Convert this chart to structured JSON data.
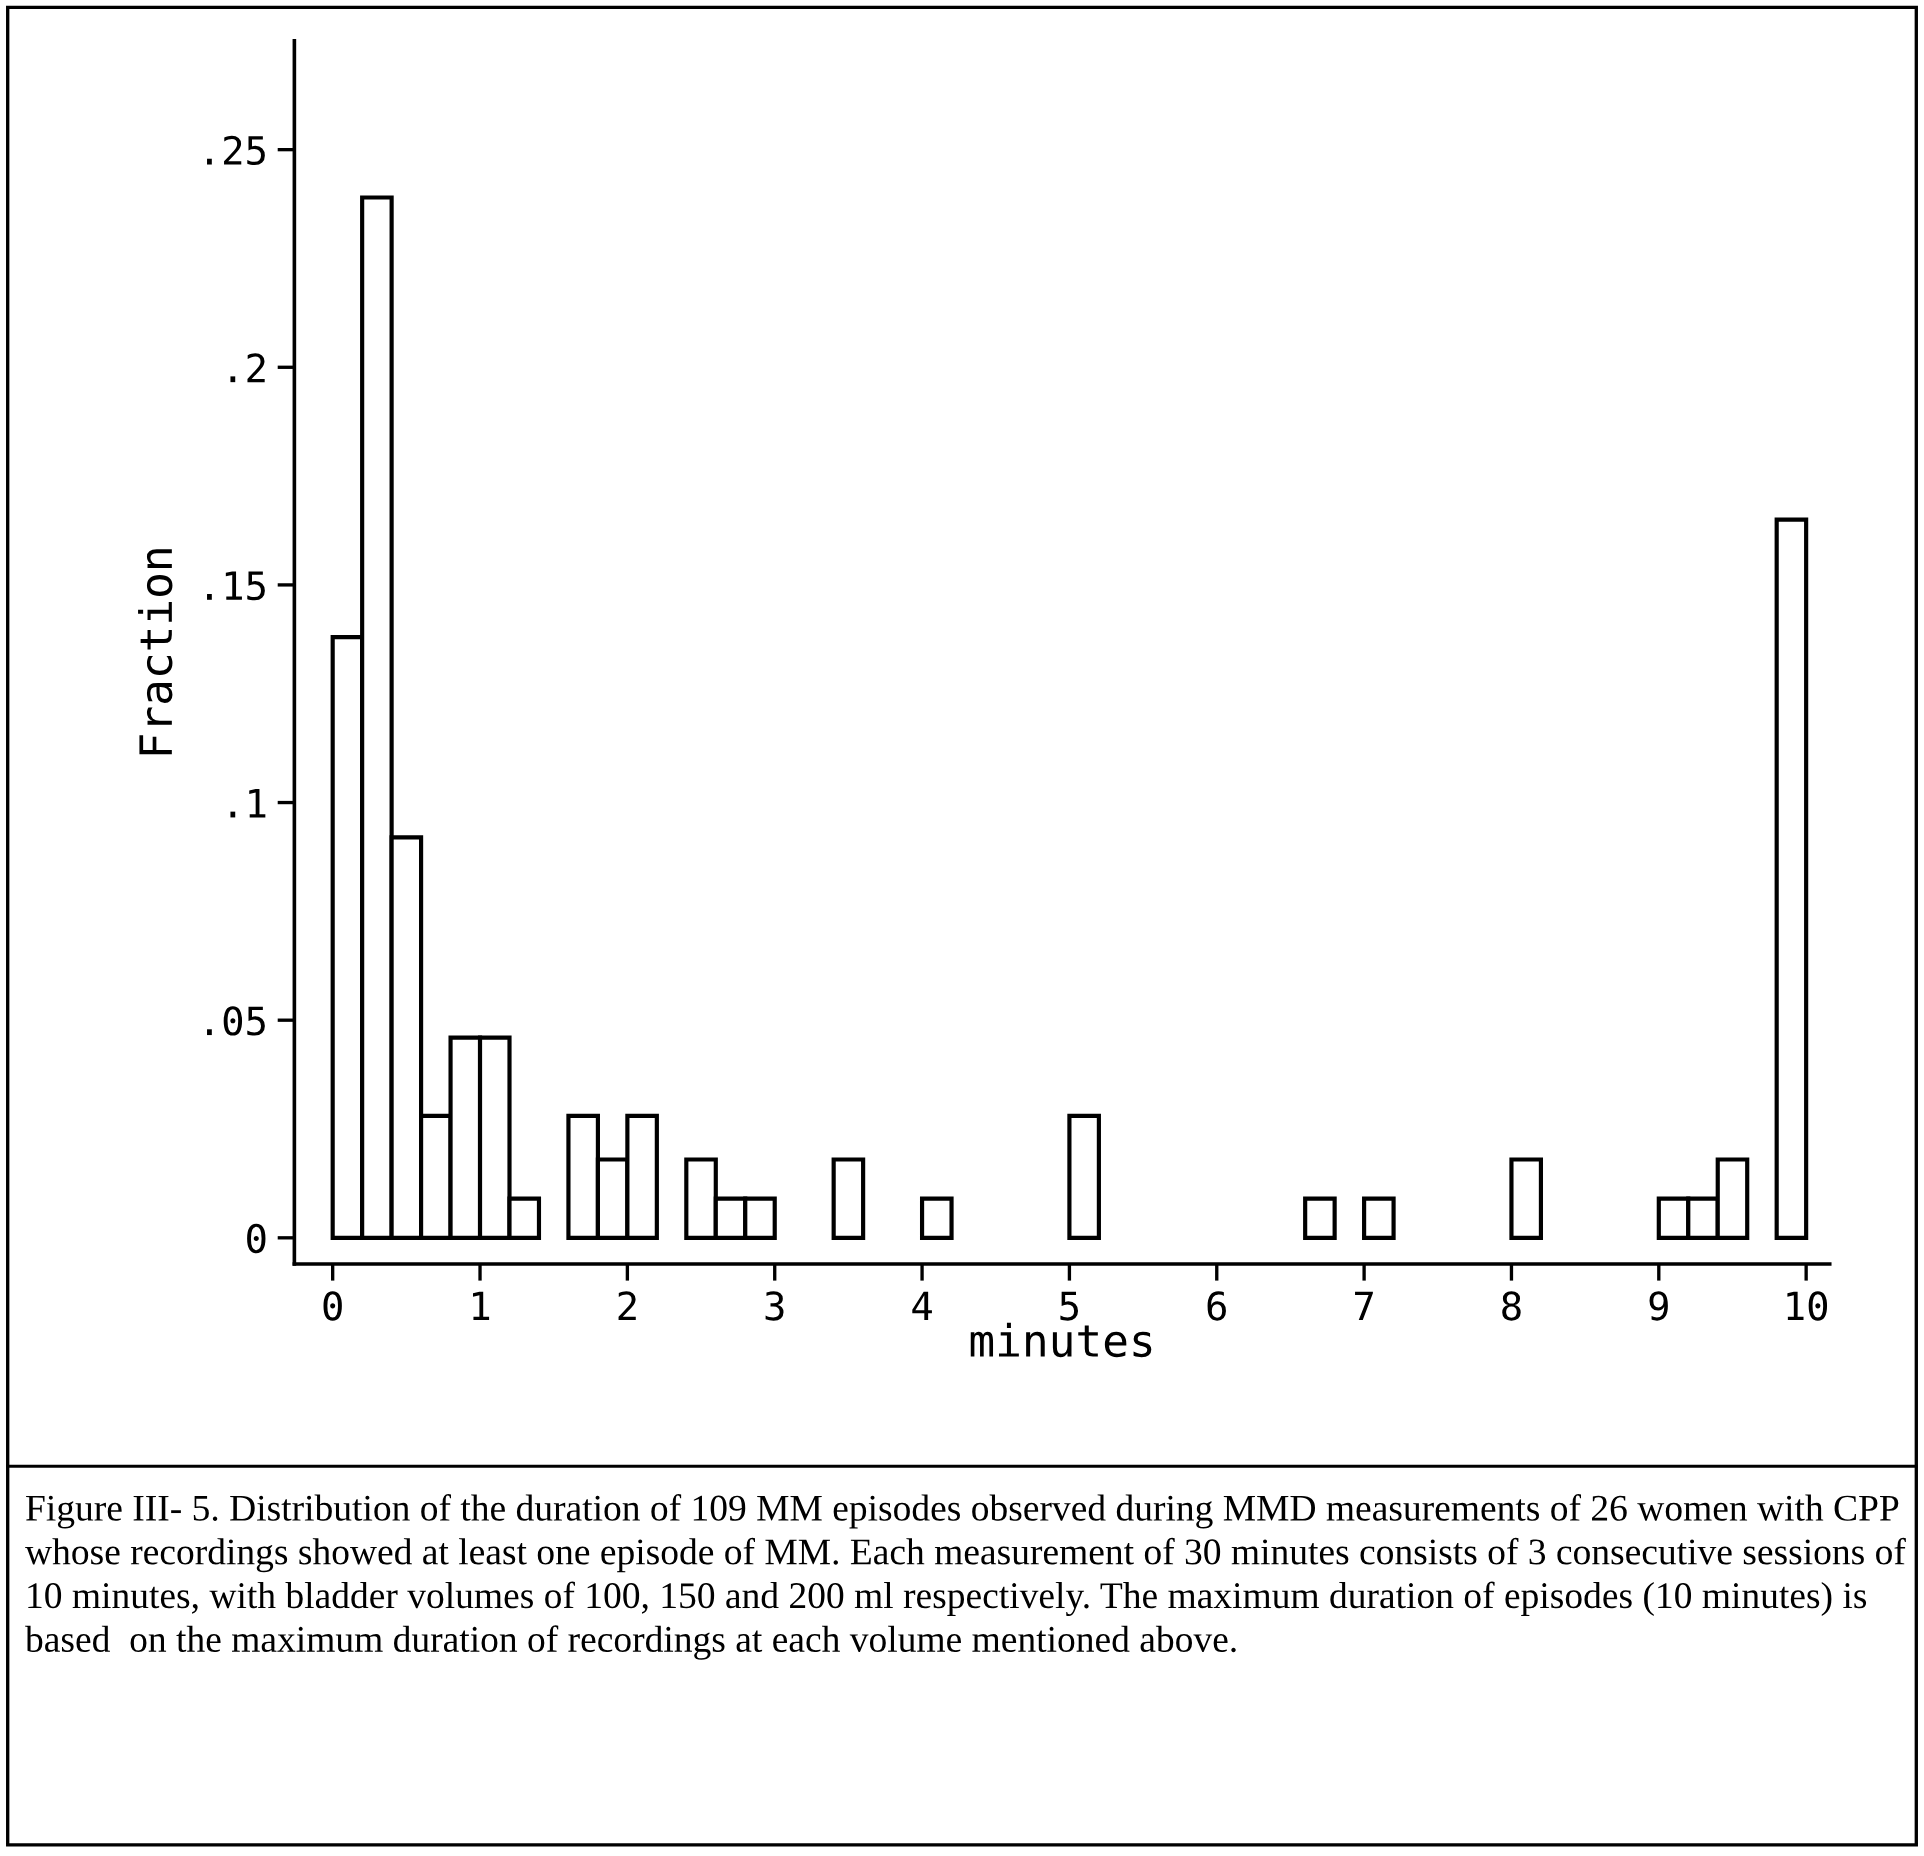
{
  "chart_data": {
    "type": "histogram",
    "xlabel": "minutes",
    "ylabel": "Fraction",
    "bins": [
      0,
      0.2,
      0.4,
      0.6,
      0.8,
      1.0,
      1.2,
      1.4,
      1.6,
      1.8,
      2.0,
      2.2,
      2.4,
      2.6,
      2.8,
      3.0,
      3.2,
      3.4,
      3.6,
      3.8,
      4.0,
      4.2,
      4.4,
      4.6,
      4.8,
      5.0,
      5.2,
      5.4,
      5.6,
      5.8,
      6.0,
      6.2,
      6.4,
      6.6,
      6.8,
      7.0,
      7.2,
      7.4,
      7.6,
      7.8,
      8.0,
      8.2,
      8.4,
      8.6,
      8.8,
      9.0,
      9.2,
      9.4,
      9.6,
      9.8,
      10.0
    ],
    "values": [
      0.138,
      0.239,
      0.092,
      0.028,
      0.046,
      0.046,
      0.009,
      0,
      0.028,
      0.018,
      0.028,
      0,
      0.018,
      0.009,
      0.009,
      0,
      0,
      0.018,
      0,
      0,
      0.009,
      0,
      0,
      0,
      0,
      0.028,
      0,
      0,
      0,
      0,
      0,
      0,
      0,
      0.009,
      0,
      0.009,
      0,
      0,
      0,
      0,
      0.018,
      0,
      0,
      0,
      0,
      0.009,
      0.009,
      0.018,
      0,
      0.165
    ],
    "color": "#ffffff",
    "xlim": [
      -0.26,
      10.16
    ],
    "ylim": [
      -0.006,
      0.275
    ],
    "xticks": [
      0,
      1,
      2,
      3,
      4,
      5,
      6,
      7,
      8,
      9,
      10
    ],
    "yticks": [
      0,
      {
        "value": 0.05,
        "label": ".05"
      },
      {
        "value": 0.1,
        "label": ".1"
      },
      {
        "value": 0.15,
        "label": ".15"
      },
      {
        "value": 0.2,
        "label": ".2"
      },
      {
        "value": 0.25,
        "label": ".25"
      }
    ],
    "grid": false,
    "annotations": [
      "Figure III- 5. Distribution of the duration of 109 MM episodes observed during MMD measurements of 26 women with CPP whose recordings showed at least one episode of MM. Each measurement of 30 minutes consists of 3 consecutive sessions of 10 minutes, with bladder volumes of 100, 150 and 200 ml respectively. The maximum duration of episodes (10 minutes) is based  on the maximum duration of recordings at each volume mentioned above."
    ]
  }
}
